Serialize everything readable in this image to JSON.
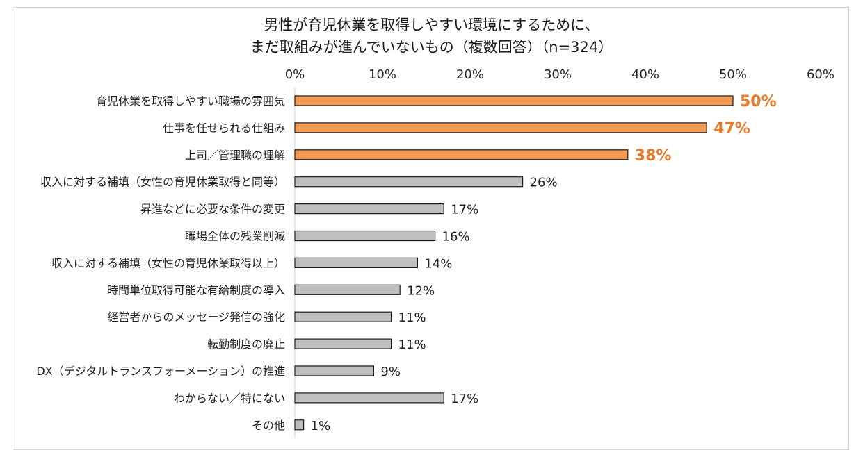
{
  "colors": {
    "highlight": "#f39a55",
    "normal": "#bfbfbf",
    "highlight_label": "#e87a2a",
    "bar_border": "#1a1a1a"
  },
  "chart_data": {
    "type": "bar",
    "orientation": "horizontal",
    "title_lines": [
      "男性が育児休業を取得しやすい環境にするために、",
      "まだ取組みが進んでいないもの（複数回答）（n=324）"
    ],
    "xlim": [
      0,
      60
    ],
    "xticks": [
      "0%",
      "10%",
      "20%",
      "30%",
      "40%",
      "50%",
      "60%"
    ],
    "grid": false,
    "categories": [
      "育児休業を取得しやすい職場の雰囲気",
      "仕事を任せられる仕組み",
      "上司／管理職の理解",
      "収入に対する補填（女性の育児休業取得と同等）",
      "昇進などに必要な条件の変更",
      "職場全体の残業削減",
      "収入に対する補填（女性の育児休業取得以上）",
      "時間単位取得可能な有給制度の導入",
      "経営者からのメッセージ発信の強化",
      "転勤制度の廃止",
      "DX（デジタルトランスフォーメーション）の推進",
      "わからない／特にない",
      "その他"
    ],
    "values": [
      50,
      47,
      38,
      26,
      17,
      16,
      14,
      12,
      11,
      11,
      9,
      17,
      1
    ],
    "value_labels": [
      "50%",
      "47%",
      "38%",
      "26%",
      "17%",
      "16%",
      "14%",
      "12%",
      "11%",
      "11%",
      "9%",
      "17%",
      "1%"
    ],
    "highlighted": [
      true,
      true,
      true,
      false,
      false,
      false,
      false,
      false,
      false,
      false,
      false,
      false,
      false
    ]
  }
}
